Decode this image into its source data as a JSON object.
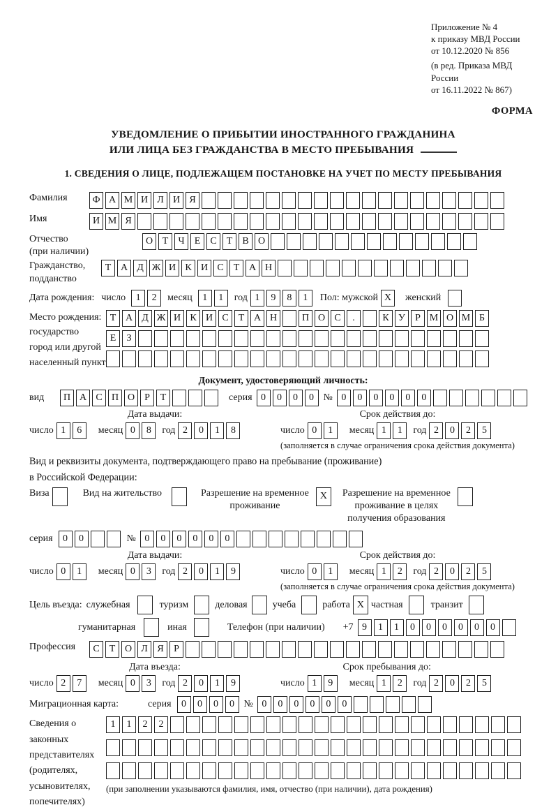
{
  "doc": {
    "header_lines": [
      "Приложение № 4",
      "к приказу МВД России",
      "от 10.12.2020 № 856"
    ],
    "header_lines_small": [
      "(в ред. Приказа МВД России",
      "от 16.11.2022 № 867)"
    ],
    "forma": "ФОРМА",
    "title1": "УВЕДОМЛЕНИЕ О ПРИБЫТИИ ИНОСТРАННОГО ГРАЖДАНИНА",
    "title2": "ИЛИ ЛИЦА БЕЗ ГРАЖДАНСТВА В МЕСТО ПРЕБЫВАНИЯ",
    "section1": "1. СВЕДЕНИЯ О ЛИЦЕ, ПОДЛЕЖАЩЕМ ПОСТАНОВКЕ НА УЧЕТ ПО МЕСТУ ПРЕБЫВАНИЯ"
  },
  "person": {
    "surname": {
      "label": "Фамилия",
      "value": "ФАМИЛИЯ",
      "cells": 26
    },
    "firstname": {
      "label": "Имя",
      "value": "ИМЯ",
      "cells": 26
    },
    "patronymic": {
      "label": "Отчество",
      "label2": "(при наличии)",
      "value": "ОТЧЕСТВО",
      "cells": 21
    },
    "citizenship": {
      "label": "Гражданство,",
      "label2": "подданство",
      "value": "ТАДЖИКИСТАН",
      "cells": 23
    },
    "birth": {
      "label": "Дата рождения:",
      "day_label": "число",
      "day": {
        "value": "12",
        "cells": 2
      },
      "month_label": "месяц",
      "month": {
        "value": "11",
        "cells": 2
      },
      "year_label": "год",
      "year": {
        "value": "1981",
        "cells": 4
      },
      "sex_label": "Пол: мужской",
      "male": {
        "value": "X",
        "cells": 1
      },
      "female_label": "женский",
      "female": {
        "value": "",
        "cells": 1
      }
    },
    "birthplace": {
      "label_lines": [
        "Место рождения:",
        "государство",
        "город или другой",
        "населенный пункт"
      ],
      "line1": {
        "value": "ТАДЖИКИСТАН ПОС. КУРМОМБ",
        "cells": 24
      },
      "line2": {
        "value": "ЕЗ",
        "cells": 24
      },
      "line3": {
        "value": "",
        "cells": 24
      }
    }
  },
  "identity_doc": {
    "header": "Документ, удостоверяющий личность:",
    "kind_label": "вид",
    "kind": {
      "value": "ПАСПОРТ",
      "cells": 10
    },
    "series_label": "серия",
    "series": {
      "value": "0000",
      "cells": 4
    },
    "number_label": "№",
    "number": {
      "value": "000000",
      "cells": 12
    },
    "issue_header": "Дата выдачи:",
    "issue": {
      "day_label": "число",
      "day": {
        "value": "16",
        "cells": 2
      },
      "month_label": "месяц",
      "month": {
        "value": "08",
        "cells": 2
      },
      "year_label": "год",
      "year": {
        "value": "2018",
        "cells": 4
      }
    },
    "expiry_header": "Срок действия до:",
    "expiry": {
      "day_label": "число",
      "day": {
        "value": "01",
        "cells": 2
      },
      "month_label": "месяц",
      "month": {
        "value": "11",
        "cells": 2
      },
      "year_label": "год",
      "year": {
        "value": "2025",
        "cells": 4
      }
    },
    "note": "(заполняется в случае ограничения срока действия документа)"
  },
  "residence_doc": {
    "intro1": "Вид и реквизиты документа, подтверждающего право на пребывание (проживание)",
    "intro2": "в Российской Федерации:",
    "opt_visa": {
      "lines": [
        "Виза"
      ],
      "box": {
        "value": "",
        "cells": 1
      }
    },
    "opt_residence_permit": {
      "lines": [
        "Вид на жительство"
      ],
      "box": {
        "value": "",
        "cells": 1
      }
    },
    "opt_temp_residence": {
      "lines": [
        "Разрешение на временное",
        "проживание"
      ],
      "box": {
        "value": "X",
        "cells": 1
      }
    },
    "opt_temp_residence_edu": {
      "lines": [
        "Разрешение на временное",
        "проживание в целях",
        "получения образования"
      ],
      "box": {
        "value": "",
        "cells": 1
      }
    },
    "series_label": "серия",
    "series": {
      "value": "00",
      "cells": 4
    },
    "number_label": "№",
    "number": {
      "value": "000000",
      "cells": 14
    },
    "issue_header": "Дата выдачи:",
    "issue": {
      "day_label": "число",
      "day": {
        "value": "01",
        "cells": 2
      },
      "month_label": "месяц",
      "month": {
        "value": "03",
        "cells": 2
      },
      "year_label": "год",
      "year": {
        "value": "2019",
        "cells": 4
      }
    },
    "expiry_header": "Срок действия до:",
    "expiry": {
      "day_label": "число",
      "day": {
        "value": "01",
        "cells": 2
      },
      "month_label": "месяц",
      "month": {
        "value": "12",
        "cells": 2
      },
      "year_label": "год",
      "year": {
        "value": "2025",
        "cells": 4
      }
    },
    "note": "(заполняется в случае ограничения срока действия документа)"
  },
  "visit": {
    "purpose_label": "Цель въезда:",
    "purposes": [
      {
        "label": "служебная",
        "box": {
          "value": "",
          "cells": 1
        }
      },
      {
        "label": "туризм",
        "box": {
          "value": "",
          "cells": 1
        }
      },
      {
        "label": "деловая",
        "box": {
          "value": "",
          "cells": 1
        }
      },
      {
        "label": "учеба",
        "box": {
          "value": "",
          "cells": 1
        }
      },
      {
        "label": "работа",
        "box": {
          "value": "X",
          "cells": 1
        }
      },
      {
        "label": "частная",
        "box": {
          "value": "",
          "cells": 1
        }
      },
      {
        "label": "транзит",
        "box": {
          "value": "",
          "cells": 1
        }
      }
    ],
    "purpose_humanitarian": {
      "label": "гуманитарная",
      "box": {
        "value": "",
        "cells": 1
      }
    },
    "purpose_other": {
      "label": "иная",
      "box": {
        "value": "",
        "cells": 1
      }
    },
    "phone_label": "Телефон (при наличии)",
    "phone_prefix": "+7",
    "phone": {
      "value": "911000000",
      "cells": 10
    },
    "profession_label": "Профессия",
    "profession": {
      "value": "СТОЛЯР",
      "cells": 26
    },
    "entry_header": "Дата въезда:",
    "entry": {
      "day_label": "число",
      "day": {
        "value": "27",
        "cells": 2
      },
      "month_label": "месяц",
      "month": {
        "value": "03",
        "cells": 2
      },
      "year_label": "год",
      "year": {
        "value": "2019",
        "cells": 4
      }
    },
    "stay_header": "Срок пребывания до:",
    "stay": {
      "day_label": "число",
      "day": {
        "value": "19",
        "cells": 2
      },
      "month_label": "месяц",
      "month": {
        "value": "12",
        "cells": 2
      },
      "year_label": "год",
      "year": {
        "value": "2025",
        "cells": 4
      }
    },
    "migration_card_label": "Миграционная карта:",
    "mc_series_label": "серия",
    "mc_series": {
      "value": "0000",
      "cells": 4
    },
    "mc_number_label": "№",
    "mc_number": {
      "value": "000000",
      "cells": 11
    }
  },
  "guardians": {
    "label_lines": [
      "Сведения о",
      "законных",
      "представителях",
      "(родителях,",
      "усыновителях,",
      "попечителях)"
    ],
    "line1": {
      "value": "1122",
      "cells": 26
    },
    "line2": {
      "value": "",
      "cells": 26
    },
    "line3": {
      "value": "",
      "cells": 26
    },
    "note": "(при заполнении указываются фамилия, имя, отчество (при наличии), дата рождения)"
  }
}
